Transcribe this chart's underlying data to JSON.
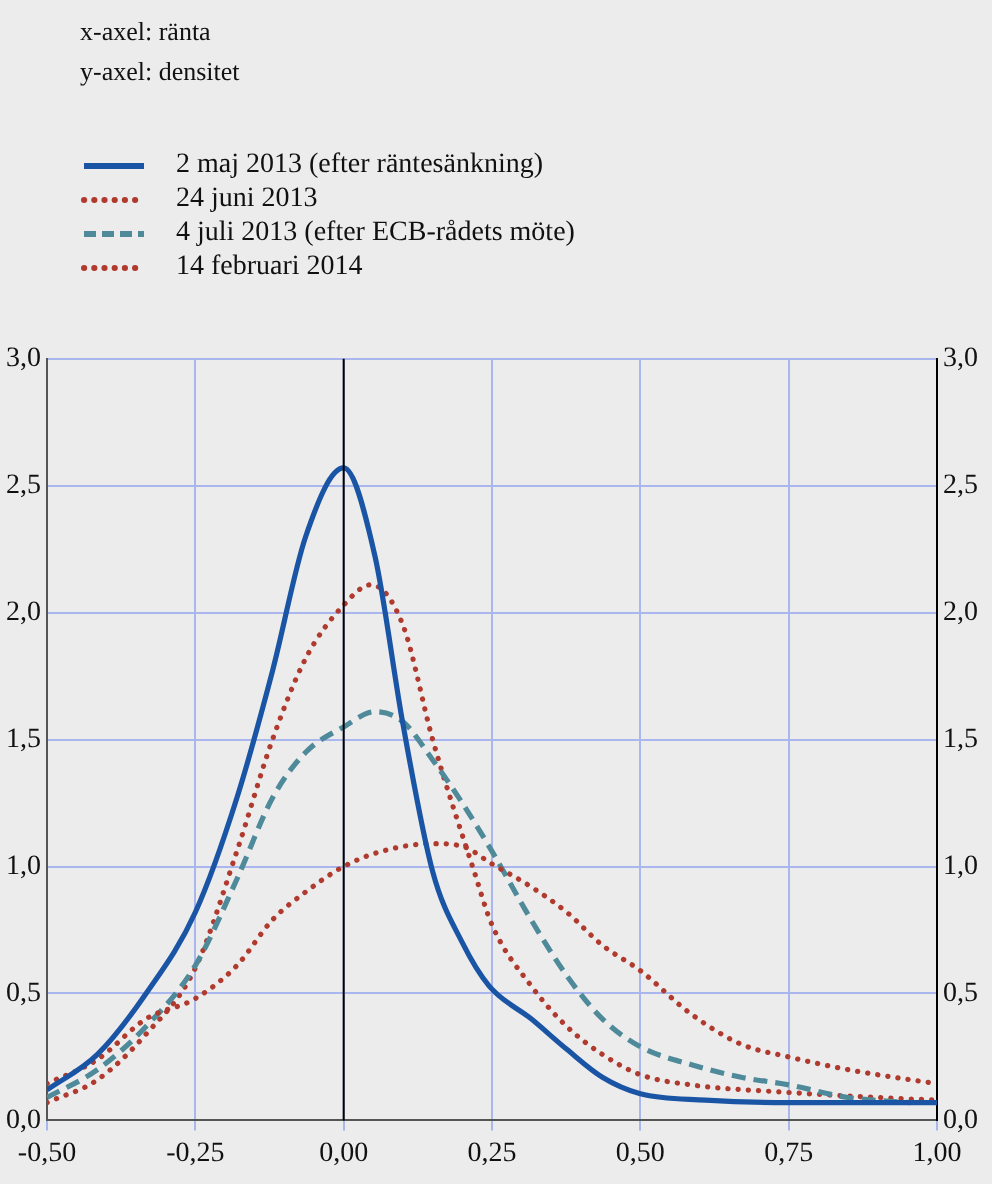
{
  "chart_data": {
    "type": "line",
    "annotations": [
      "x-axel: ränta",
      "y-axel: densitet"
    ],
    "series": [
      {
        "name": "2 maj 2013 (efter räntesänkning)",
        "color": "#1a55a5",
        "line_style": "solid",
        "x": [
          -0.5,
          -0.415,
          -0.333,
          -0.25,
          -0.18,
          -0.12,
          -0.064,
          0,
          0.053,
          0.1,
          0.15,
          0.2,
          0.245,
          0.316,
          0.376,
          0.436,
          0.5,
          0.61,
          0.75,
          1.0
        ],
        "values": [
          0.12,
          0.26,
          0.5,
          0.82,
          1.27,
          1.77,
          2.3,
          2.57,
          2.22,
          1.56,
          0.98,
          0.7,
          0.53,
          0.4,
          0.28,
          0.17,
          0.105,
          0.08,
          0.07,
          0.07
        ]
      },
      {
        "name": "24 juni 2013",
        "color": "#b03a2e",
        "line_style": "dotted",
        "x": [
          -0.5,
          -0.415,
          -0.333,
          -0.25,
          -0.18,
          -0.12,
          -0.064,
          0,
          0.064,
          0.15,
          0.2,
          0.25,
          0.316,
          0.376,
          0.436,
          0.5,
          0.585,
          0.67,
          0.75,
          0.85,
          0.955,
          1.0
        ],
        "values": [
          0.145,
          0.24,
          0.4,
          0.48,
          0.61,
          0.79,
          0.9,
          1.0,
          1.06,
          1.09,
          1.08,
          1.01,
          0.92,
          0.82,
          0.69,
          0.59,
          0.42,
          0.3,
          0.25,
          0.2,
          0.16,
          0.145
        ]
      },
      {
        "name": "4 juli 2013 (efter ECB-rådets möte)",
        "color": "#4e8a99",
        "line_style": "dashed",
        "x": [
          -0.5,
          -0.415,
          -0.333,
          -0.25,
          -0.18,
          -0.12,
          -0.064,
          0,
          0.053,
          0.1,
          0.15,
          0.2,
          0.25,
          0.316,
          0.376,
          0.436,
          0.5,
          0.585,
          0.67,
          0.75,
          0.85,
          0.955
        ],
        "values": [
          0.09,
          0.2,
          0.37,
          0.61,
          0.95,
          1.27,
          1.45,
          1.55,
          1.61,
          1.57,
          1.42,
          1.25,
          1.06,
          0.79,
          0.57,
          0.4,
          0.29,
          0.22,
          0.17,
          0.14,
          0.09,
          0.07
        ]
      },
      {
        "name": "14 februari 2014",
        "color": "#b03a2e",
        "line_style": "dotted",
        "x": [
          -0.5,
          -0.415,
          -0.333,
          -0.25,
          -0.18,
          -0.12,
          -0.064,
          0,
          0.046,
          0.1,
          0.15,
          0.22,
          0.25,
          0.316,
          0.376,
          0.436,
          0.5,
          0.585,
          0.75,
          0.9,
          1.0
        ],
        "values": [
          0.07,
          0.16,
          0.34,
          0.6,
          1.06,
          1.5,
          1.82,
          2.03,
          2.11,
          1.95,
          1.5,
          0.98,
          0.77,
          0.53,
          0.37,
          0.26,
          0.18,
          0.14,
          0.11,
          0.09,
          0.08
        ]
      }
    ],
    "xlim": [
      -0.5,
      1.0
    ],
    "xticks": [
      {
        "value": -0.5,
        "label": "-0,50"
      },
      {
        "value": -0.25,
        "label": "-0,25"
      },
      {
        "value": 0,
        "label": "0,00"
      },
      {
        "value": 0.25,
        "label": "0,25"
      },
      {
        "value": 0.5,
        "label": "0,50"
      },
      {
        "value": 0.75,
        "label": "0,75"
      },
      {
        "value": 1.0,
        "label": "1,00"
      }
    ],
    "ylim": [
      0,
      3
    ],
    "yticks": [
      {
        "value": 0,
        "label": "0,0"
      },
      {
        "value": 0.5,
        "label": "0,5"
      },
      {
        "value": 1,
        "label": "1,0"
      },
      {
        "value": 1.5,
        "label": "1,5"
      },
      {
        "value": 2,
        "label": "2,0"
      },
      {
        "value": 2.5,
        "label": "2,5"
      },
      {
        "value": 3,
        "label": "3,0"
      }
    ],
    "y2lim": [
      0,
      3
    ],
    "y2ticks": [
      {
        "value": 0,
        "label": "0,0"
      },
      {
        "value": 0.5,
        "label": "0,5"
      },
      {
        "value": 1,
        "label": "1,0"
      },
      {
        "value": 1.5,
        "label": "1,5"
      },
      {
        "value": 2,
        "label": "2,0"
      },
      {
        "value": 2.5,
        "label": "2,5"
      },
      {
        "value": 3,
        "label": "3,0"
      }
    ],
    "ref_lines": [
      {
        "axis": "x",
        "value": 0,
        "color": "#000000"
      }
    ],
    "grid": true,
    "legend": "top left",
    "marker": "none"
  }
}
